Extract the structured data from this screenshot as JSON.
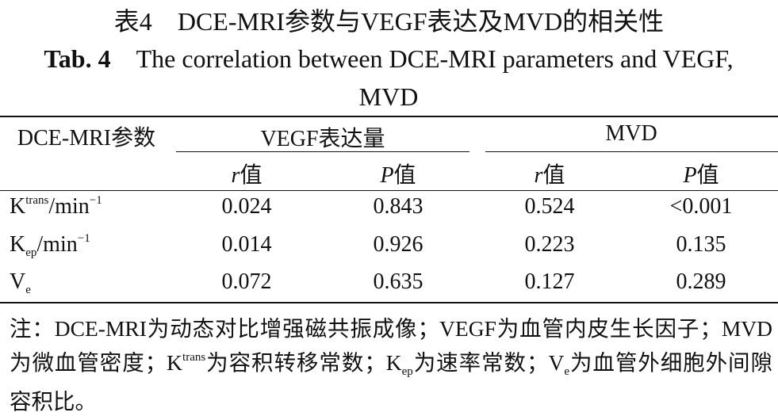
{
  "caption": {
    "label_cn": "表4",
    "text_cn": "DCE-MRI参数与VEGF表达及MVD的相关性",
    "label_en": "Tab. 4",
    "text_en": "The correlation between DCE-MRI parameters and VEGF, MVD"
  },
  "table": {
    "row_header": "DCE-MRI参数",
    "groups": [
      "VEGF表达量",
      "MVD"
    ],
    "subheaders": [
      {
        "var": "r",
        "text": "值"
      },
      {
        "var": "P",
        "text": "值"
      },
      {
        "var": "r",
        "text": "值"
      },
      {
        "var": "P",
        "text": "值"
      }
    ],
    "rows": [
      {
        "label": [
          {
            "text": "K"
          },
          {
            "text": "trans",
            "pos": "sup"
          },
          {
            "text": "/min"
          },
          {
            "text": "−1",
            "pos": "sup"
          }
        ],
        "cells": [
          0.024,
          0.843,
          0.524,
          "<0.001"
        ]
      },
      {
        "label": [
          {
            "text": "K"
          },
          {
            "text": "ep",
            "pos": "sub"
          },
          {
            "text": "/min"
          },
          {
            "text": "−1",
            "pos": "sup"
          }
        ],
        "cells": [
          0.014,
          0.926,
          0.223,
          0.135
        ]
      },
      {
        "label": [
          {
            "text": "V"
          },
          {
            "text": "e",
            "pos": "sub"
          }
        ],
        "cells": [
          0.072,
          0.635,
          0.127,
          0.289
        ]
      }
    ]
  },
  "note": [
    {
      "text": "注：DCE-MRI为动态对比增强磁共振成像；VEGF为血管内皮生长因子；MVD为微血管密度；K"
    },
    {
      "text": "trans",
      "pos": "sup"
    },
    {
      "text": "为容积转移常数；K"
    },
    {
      "text": "ep",
      "pos": "sub"
    },
    {
      "text": "为速率常数；V"
    },
    {
      "text": "e",
      "pos": "sub"
    },
    {
      "text": "为血管外细胞外间隙容积比。"
    }
  ]
}
